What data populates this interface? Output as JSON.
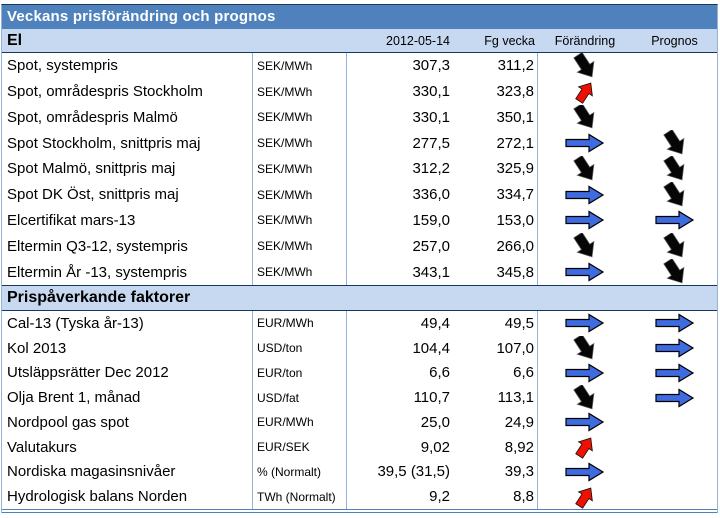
{
  "title": "Veckans prisförändring och prognos",
  "columns": {
    "date": "2012-05-14",
    "prev": "Fg vecka",
    "change": "Förändring",
    "forecast": "Prognos"
  },
  "icons": {
    "down": "arrow-down-icon",
    "up": "arrow-up-icon",
    "flat": "arrow-right-icon"
  },
  "colors": {
    "header_band": "#4F81BD",
    "band_light": "#C6D9F1",
    "grid_line": "#95B3D7",
    "dark_line": "#17375D",
    "arrow_black": "#060606",
    "arrow_red": "#EE1100",
    "arrow_blue": "#3E6BE0"
  },
  "sections": [
    {
      "label": "El",
      "rows": [
        {
          "name": "Spot, systempris",
          "unit": "SEK/MWh",
          "current": "307,3",
          "previous": "311,2",
          "change": "down",
          "forecast": ""
        },
        {
          "name": "Spot, områdespris Stockholm",
          "unit": "SEK/MWh",
          "current": "330,1",
          "previous": "323,8",
          "change": "up",
          "forecast": ""
        },
        {
          "name": "Spot, områdespris Malmö",
          "unit": "SEK/MWh",
          "current": "330,1",
          "previous": "350,1",
          "change": "down",
          "forecast": ""
        },
        {
          "name": "Spot Stockholm, snittpris maj",
          "unit": "SEK/MWh",
          "current": "277,5",
          "previous": "272,1",
          "change": "flat",
          "forecast": "down"
        },
        {
          "name": "Spot Malmö, snittpris maj",
          "unit": "SEK/MWh",
          "current": "312,2",
          "previous": "325,9",
          "change": "down",
          "forecast": "down"
        },
        {
          "name": "Spot DK Öst, snittpris maj",
          "unit": "SEK/MWh",
          "current": "336,0",
          "previous": "334,7",
          "change": "flat",
          "forecast": "down"
        },
        {
          "name": "Elcertifikat mars-13",
          "unit": "SEK/MWh",
          "current": "159,0",
          "previous": "153,0",
          "change": "flat",
          "forecast": "flat"
        },
        {
          "name": "Eltermin Q3-12, systempris",
          "unit": "SEK/MWh",
          "current": "257,0",
          "previous": "266,0",
          "change": "down",
          "forecast": "down"
        },
        {
          "name": "Eltermin År -13, systempris",
          "unit": "SEK/MWh",
          "current": "343,1",
          "previous": "345,8",
          "change": "flat",
          "forecast": "down"
        }
      ]
    },
    {
      "label": "Prispåverkande faktorer",
      "rows": [
        {
          "name": "Cal-13 (Tyska år-13)",
          "unit": "EUR/MWh",
          "current": "49,4",
          "previous": "49,5",
          "change": "flat",
          "forecast": "flat"
        },
        {
          "name": "Kol 2013",
          "unit": "USD/ton",
          "current": "104,4",
          "previous": "107,0",
          "change": "down",
          "forecast": "flat"
        },
        {
          "name": "Utsläppsrätter Dec 2012",
          "unit": "EUR/ton",
          "current": "6,6",
          "previous": "6,6",
          "change": "flat",
          "forecast": "flat"
        },
        {
          "name": "Olja Brent 1, månad",
          "unit": "USD/fat",
          "current": "110,7",
          "previous": "113,1",
          "change": "down",
          "forecast": "flat"
        },
        {
          "name": "Nordpool gas spot",
          "unit": "EUR/MWh",
          "current": "25,0",
          "previous": "24,9",
          "change": "flat",
          "forecast": ""
        },
        {
          "name": "Valutakurs",
          "unit": "EUR/SEK",
          "current": "9,02",
          "previous": "8,92",
          "change": "up",
          "forecast": ""
        },
        {
          "name": "Nordiska magasinsnivåer",
          "unit": "% (Normalt)",
          "current": "39,5 (31,5)",
          "previous": "39,3",
          "change": "flat",
          "forecast": ""
        },
        {
          "name": "Hydrologisk balans Norden",
          "unit": "TWh (Normalt)",
          "current": "9,2",
          "previous": "8,8",
          "change": "up",
          "forecast": ""
        }
      ]
    }
  ]
}
